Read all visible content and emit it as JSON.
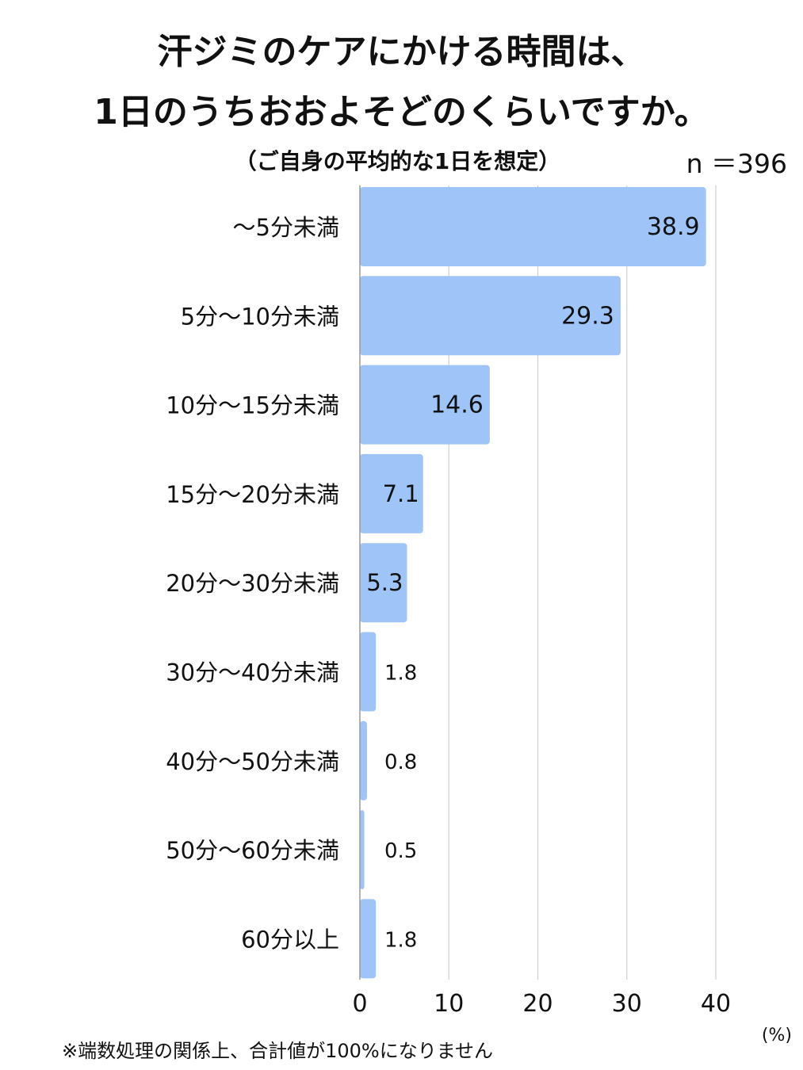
{
  "chart_data": {
    "type": "bar",
    "orientation": "horizontal",
    "title_lines": [
      "汗ジミのケアにかける時間は、",
      "1日のうちおおよそどのくらいですか。"
    ],
    "subtitle": "（ご自身の平均的な1日を想定）",
    "sample_size": "n ＝396",
    "categories": [
      "～5分未満",
      "5分～10分未満",
      "10分～15分未満",
      "15分～20分未満",
      "20分～30分未満",
      "30分～40分未満",
      "40分～50分未満",
      "50分～60分未満",
      "60分以上"
    ],
    "values": [
      38.9,
      29.3,
      14.6,
      7.1,
      5.3,
      1.8,
      0.8,
      0.5,
      1.8
    ],
    "value_labels": [
      "38.9",
      "29.3",
      "14.6",
      "7.1",
      "5.3",
      "1.8",
      "0.8",
      "0.5",
      "1.8"
    ],
    "xlim": [
      0,
      40
    ],
    "x_ticks": [
      0,
      10,
      20,
      30,
      40
    ],
    "x_unit": "(%)",
    "grid": true,
    "bar_color": "#9fc5f8",
    "footnote": "※端数処理の関係上、合計値が100%になりません"
  }
}
